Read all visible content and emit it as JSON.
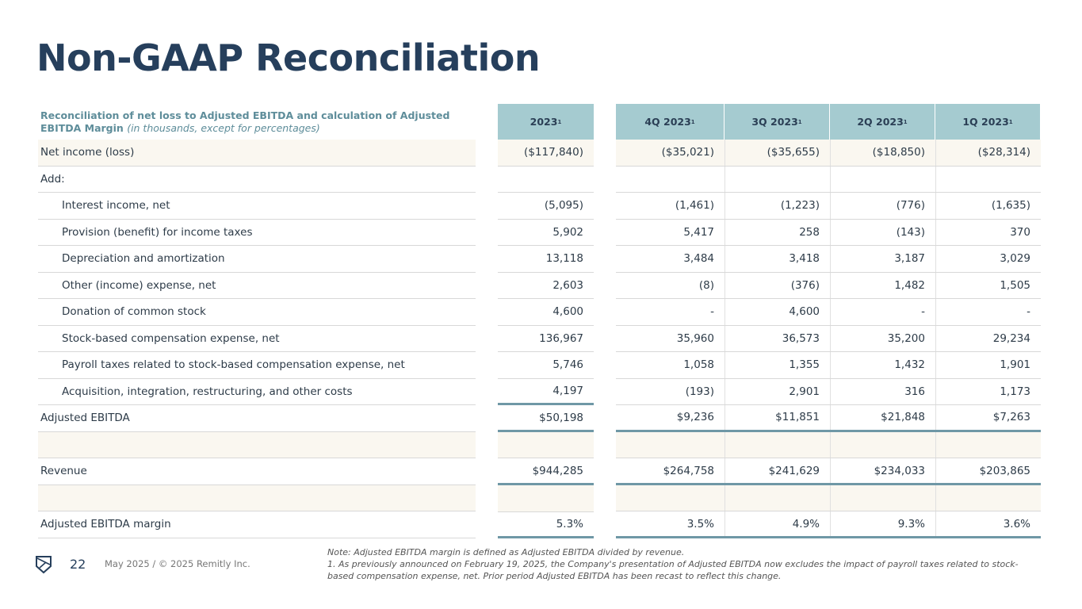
{
  "title": "Non-GAAP Reconciliation",
  "table": {
    "header_label": "Reconciliation of net loss to Adjusted EBITDA and calculation of Adjusted EBITDA Margin",
    "header_label_note": "(in thousands, except for percentages)",
    "annual_col": {
      "label": "2023",
      "sup": "1"
    },
    "quarter_cols": [
      {
        "label": "4Q 2023",
        "sup": "1"
      },
      {
        "label": "3Q 2023",
        "sup": "1"
      },
      {
        "label": "2Q 2023",
        "sup": "1"
      },
      {
        "label": "1Q 2023",
        "sup": "1"
      }
    ],
    "rows": [
      {
        "label": "Net income (loss)",
        "annual": "($117,840)",
        "q": [
          "($35,021)",
          "($35,655)",
          "($18,850)",
          "($28,314)"
        ],
        "style": "cream"
      },
      {
        "label": "Add:",
        "annual": "",
        "q": [
          "",
          "",
          "",
          ""
        ]
      },
      {
        "label": "Interest income, net",
        "annual": "(5,095)",
        "q": [
          "(1,461)",
          "(1,223)",
          "(776)",
          "(1,635)"
        ],
        "indent": true
      },
      {
        "label": "Provision (benefit) for income taxes",
        "annual": "5,902",
        "q": [
          "5,417",
          "258",
          "(143)",
          "370"
        ],
        "indent": true
      },
      {
        "label": "Depreciation and amortization",
        "annual": "13,118",
        "q": [
          "3,484",
          "3,418",
          "3,187",
          "3,029"
        ],
        "indent": true
      },
      {
        "label": "Other (income) expense, net",
        "annual": "2,603",
        "q": [
          "(8)",
          "(376)",
          "1,482",
          "1,505"
        ],
        "indent": true
      },
      {
        "label": "Donation of common stock",
        "annual": "4,600",
        "q": [
          "-",
          "4,600",
          "-",
          "-"
        ],
        "indent": true
      },
      {
        "label": "Stock-based compensation expense, net",
        "annual": "136,967",
        "q": [
          "35,960",
          "36,573",
          "35,200",
          "29,234"
        ],
        "indent": true
      },
      {
        "label": "Payroll taxes related to stock-based compensation expense, net",
        "annual": "5,746",
        "q": [
          "1,058",
          "1,355",
          "1,432",
          "1,901"
        ],
        "indent": true
      },
      {
        "label": "Acquisition, integration, restructuring, and other costs",
        "annual": "4,197",
        "q": [
          "(193)",
          "2,901",
          "316",
          "1,173"
        ],
        "indent": true,
        "thick": true
      },
      {
        "label": "Adjusted EBITDA",
        "annual": "$50,198",
        "q": [
          "$9,236",
          "$11,851",
          "$21,848",
          "$7,263"
        ],
        "thick": true
      },
      {
        "label": "",
        "annual": "",
        "q": [
          "",
          "",
          "",
          ""
        ],
        "style": "cream"
      },
      {
        "label": "Revenue",
        "annual": "$944,285",
        "q": [
          "$264,758",
          "$241,629",
          "$234,033",
          "$203,865"
        ],
        "thick": true
      },
      {
        "label": "",
        "annual": "",
        "q": [
          "",
          "",
          "",
          ""
        ],
        "style": "cream"
      },
      {
        "label": "Adjusted EBITDA margin",
        "annual": "5.3%",
        "q": [
          "3.5%",
          "4.9%",
          "9.3%",
          "3.6%"
        ],
        "thick": true
      }
    ]
  },
  "footer": {
    "page": "22",
    "text": "May 2025 / © 2025 Remitly Inc.",
    "logo": "remitly-logo"
  },
  "notes": [
    "Note: Adjusted EBITDA margin is defined as Adjusted EBITDA divided by revenue.",
    "1. As previously announced on February 19, 2025, the Company's presentation of Adjusted EBITDA now excludes the impact of payroll taxes related to stock-based compensation expense, net. Prior period Adjusted EBITDA has been recast to reflect this change."
  ],
  "colors": {
    "title": "#263f5c",
    "header_bg": "#a5cbd0",
    "accent_line": "#6f98a6",
    "cream": "#faf7f0"
  }
}
